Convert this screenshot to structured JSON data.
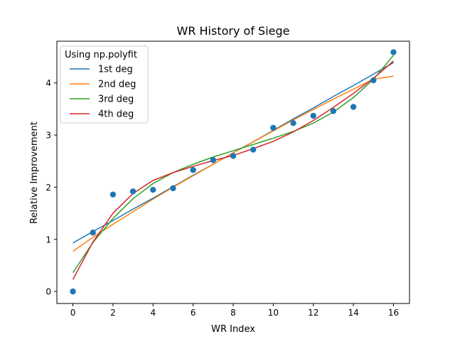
{
  "chart_data": {
    "type": "line",
    "title": "WR History of Siege",
    "xlabel": "WR Index",
    "ylabel": "Relative Improvement",
    "xlim": [
      -0.8,
      16.8
    ],
    "ylim": [
      -0.23,
      4.8
    ],
    "xticks": [
      0,
      2,
      4,
      6,
      8,
      10,
      12,
      14,
      16
    ],
    "yticks": [
      0,
      1,
      2,
      3,
      4
    ],
    "grid": false,
    "legend": {
      "title": "Using np.polyfit",
      "placement": "upper-left"
    },
    "scatter": {
      "name": "",
      "color": "#1f77b4",
      "x": [
        0,
        1,
        2,
        3,
        4,
        5,
        6,
        7,
        8,
        9,
        10,
        11,
        12,
        13,
        14,
        15,
        16
      ],
      "y": [
        0.0,
        1.13,
        1.86,
        1.92,
        1.95,
        1.98,
        2.33,
        2.52,
        2.6,
        2.72,
        3.14,
        3.23,
        3.37,
        3.46,
        3.54,
        4.05,
        4.59
      ]
    },
    "series": [
      {
        "name": "1st deg",
        "color": "#1f77b4",
        "x": [
          0,
          1,
          2,
          3,
          4,
          5,
          6,
          7,
          8,
          9,
          10,
          11,
          12,
          13,
          14,
          15,
          16
        ],
        "values": [
          0.93,
          1.15,
          1.36,
          1.58,
          1.79,
          2.01,
          2.23,
          2.44,
          2.66,
          2.87,
          3.09,
          3.31,
          3.52,
          3.74,
          3.95,
          4.17,
          4.39
        ]
      },
      {
        "name": "2nd deg",
        "color": "#ff7f0e",
        "x": [
          0,
          1,
          2,
          3,
          4,
          5,
          6,
          7,
          8,
          9,
          10,
          11,
          12,
          13,
          14,
          15,
          16
        ],
        "values": [
          0.77,
          1.04,
          1.29,
          1.53,
          1.77,
          2.0,
          2.22,
          2.44,
          2.66,
          2.87,
          3.08,
          3.29,
          3.49,
          3.69,
          3.88,
          4.07,
          4.13
        ]
      },
      {
        "name": "3rd deg",
        "color": "#2ca02c",
        "x": [
          0,
          1,
          2,
          3,
          4,
          5,
          6,
          7,
          8,
          9,
          10,
          11,
          12,
          13,
          14,
          15,
          16
        ],
        "values": [
          0.36,
          0.94,
          1.4,
          1.78,
          2.07,
          2.28,
          2.44,
          2.58,
          2.7,
          2.82,
          2.94,
          3.07,
          3.23,
          3.44,
          3.72,
          4.07,
          4.53
        ]
      },
      {
        "name": "4th deg",
        "color": "#d62728",
        "x": [
          0,
          1,
          2,
          3,
          4,
          5,
          6,
          7,
          8,
          9,
          10,
          11,
          12,
          13,
          14,
          15,
          16
        ],
        "values": [
          0.23,
          0.95,
          1.5,
          1.88,
          2.13,
          2.28,
          2.4,
          2.51,
          2.61,
          2.74,
          2.88,
          3.06,
          3.28,
          3.53,
          3.8,
          4.09,
          4.42
        ]
      }
    ]
  }
}
